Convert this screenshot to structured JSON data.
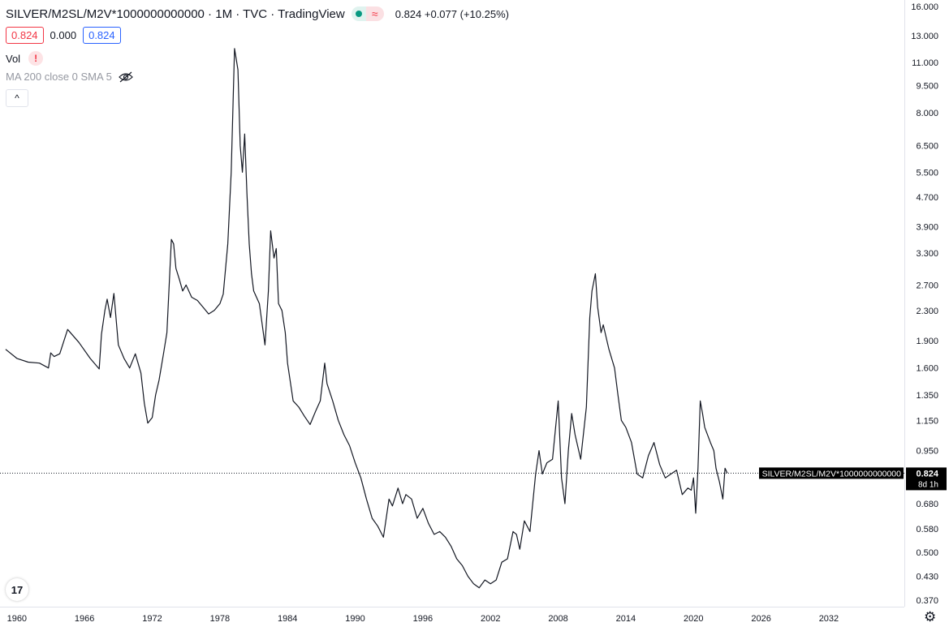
{
  "header": {
    "title": "SILVER/M2SL/M2V*1000000000000 · 1M · TVC · TradingView",
    "change_text": "0.824  +0.077 (+10.25%)",
    "dot_icon": "status-dot-icon",
    "wave_icon": "wave-icon",
    "wave_glyph": "≈"
  },
  "ohlc": {
    "price_box": "0.824",
    "spread": "0.000",
    "price_box2": "0.824"
  },
  "indicators": {
    "vol_label": "Vol",
    "vol_warning": "!",
    "ma_label": "MA 200 close 0 SMA 5"
  },
  "collapse_glyph": "^",
  "logo_text": "17",
  "colors": {
    "line": "#131722",
    "up": "#089981",
    "down": "#f23645",
    "accent": "#2962ff",
    "price_label_bg": "#000000"
  },
  "chart_data": {
    "type": "line",
    "title": "SILVER/M2SL/M2V*1000000000000",
    "xlabel": "",
    "ylabel": "",
    "scale": "log",
    "grid": false,
    "xlim": [
      1958.5,
      2038.7
    ],
    "ylim": [
      0.355,
      16.3
    ],
    "x_ticks": [
      "1960",
      "1966",
      "1972",
      "1978",
      "1984",
      "1990",
      "1996",
      "2002",
      "2008",
      "2014",
      "2020",
      "2026",
      "2032"
    ],
    "y_ticks": [
      "16.000",
      "13.000",
      "11.000",
      "9.500",
      "8.000",
      "6.500",
      "5.500",
      "4.700",
      "3.900",
      "3.300",
      "2.700",
      "2.300",
      "1.900",
      "1.600",
      "1.350",
      "1.150",
      "0.950",
      "0.680",
      "0.580",
      "0.500",
      "0.430",
      "0.370"
    ],
    "last_value": 0.824,
    "last_value_text": "0.824",
    "price_label": "SILVER/M2SL/M2V*1000000000000",
    "countdown": "8d 1h",
    "series": [
      {
        "name": "SILVER/M2SL/M2V*1000000000000",
        "x": [
          1959.0,
          1960.0,
          1961.0,
          1962.0,
          1962.8,
          1963.0,
          1963.3,
          1963.8,
          1964.5,
          1965.5,
          1966.5,
          1967.3,
          1967.5,
          1967.8,
          1968.0,
          1968.3,
          1968.6,
          1969.0,
          1969.5,
          1970.0,
          1970.5,
          1971.0,
          1971.3,
          1971.6,
          1972.0,
          1972.3,
          1972.6,
          1973.0,
          1973.3,
          1973.7,
          1973.9,
          1974.1,
          1974.4,
          1974.7,
          1975.0,
          1975.5,
          1976.0,
          1976.5,
          1977.0,
          1977.5,
          1978.0,
          1978.3,
          1978.7,
          1979.0,
          1979.3,
          1979.6,
          1979.8,
          1980.0,
          1980.2,
          1980.4,
          1980.6,
          1980.8,
          1981.0,
          1981.5,
          1982.0,
          1982.3,
          1982.5,
          1982.8,
          1983.0,
          1983.2,
          1983.5,
          1983.8,
          1984.0,
          1984.5,
          1985.0,
          1985.5,
          1986.0,
          1986.5,
          1986.9,
          1987.3,
          1987.5,
          1988.0,
          1988.5,
          1989.0,
          1989.5,
          1990.0,
          1990.5,
          1991.0,
          1991.5,
          1992.0,
          1992.5,
          1993.0,
          1993.3,
          1993.8,
          1994.2,
          1994.5,
          1995.0,
          1995.5,
          1996.0,
          1996.5,
          1997.0,
          1997.5,
          1998.0,
          1998.5,
          1999.0,
          1999.5,
          2000.0,
          2000.5,
          2001.0,
          2001.5,
          2002.0,
          2002.5,
          2003.0,
          2003.5,
          2004.0,
          2004.3,
          2004.6,
          2005.0,
          2005.5,
          2006.0,
          2006.3,
          2006.6,
          2007.0,
          2007.5,
          2008.0,
          2008.3,
          2008.6,
          2008.9,
          2009.2,
          2009.5,
          2010.0,
          2010.5,
          2010.8,
          2011.0,
          2011.3,
          2011.5,
          2011.8,
          2012.0,
          2012.5,
          2013.0,
          2013.3,
          2013.6,
          2014.0,
          2014.5,
          2015.0,
          2015.5,
          2016.0,
          2016.5,
          2017.0,
          2017.5,
          2018.0,
          2018.5,
          2019.0,
          2019.5,
          2019.8,
          2020.0,
          2020.2,
          2020.4,
          2020.6,
          2020.8,
          2021.0,
          2021.5,
          2021.8,
          2022.0,
          2022.3,
          2022.6,
          2022.8,
          2023.0
        ],
        "values": [
          1.8,
          1.7,
          1.66,
          1.65,
          1.6,
          1.76,
          1.72,
          1.75,
          2.04,
          1.88,
          1.7,
          1.59,
          1.98,
          2.3,
          2.47,
          2.2,
          2.56,
          1.85,
          1.7,
          1.6,
          1.75,
          1.55,
          1.28,
          1.13,
          1.17,
          1.35,
          1.48,
          1.75,
          2.0,
          3.6,
          3.5,
          3.0,
          2.8,
          2.6,
          2.7,
          2.5,
          2.45,
          2.35,
          2.25,
          2.3,
          2.4,
          2.55,
          3.5,
          5.5,
          12.0,
          10.5,
          6.5,
          5.5,
          7.0,
          4.8,
          3.5,
          2.9,
          2.6,
          2.4,
          1.85,
          2.6,
          3.8,
          3.2,
          3.4,
          2.4,
          2.3,
          2.0,
          1.65,
          1.3,
          1.25,
          1.18,
          1.12,
          1.22,
          1.3,
          1.65,
          1.45,
          1.3,
          1.15,
          1.05,
          0.98,
          0.88,
          0.8,
          0.7,
          0.62,
          0.59,
          0.55,
          0.7,
          0.67,
          0.75,
          0.68,
          0.72,
          0.7,
          0.62,
          0.66,
          0.6,
          0.56,
          0.57,
          0.55,
          0.52,
          0.48,
          0.46,
          0.43,
          0.41,
          0.4,
          0.42,
          0.41,
          0.42,
          0.47,
          0.48,
          0.57,
          0.56,
          0.51,
          0.61,
          0.57,
          0.82,
          0.95,
          0.82,
          0.88,
          0.9,
          1.3,
          0.8,
          0.68,
          0.95,
          1.2,
          1.05,
          0.9,
          1.25,
          2.2,
          2.6,
          2.9,
          2.35,
          2.0,
          2.1,
          1.8,
          1.6,
          1.35,
          1.15,
          1.1,
          1.0,
          0.82,
          0.8,
          0.92,
          1.0,
          0.87,
          0.8,
          0.82,
          0.84,
          0.72,
          0.75,
          0.74,
          0.8,
          0.64,
          0.85,
          1.3,
          1.2,
          1.1,
          1.0,
          0.95,
          0.85,
          0.78,
          0.7,
          0.85,
          0.824
        ]
      }
    ]
  }
}
